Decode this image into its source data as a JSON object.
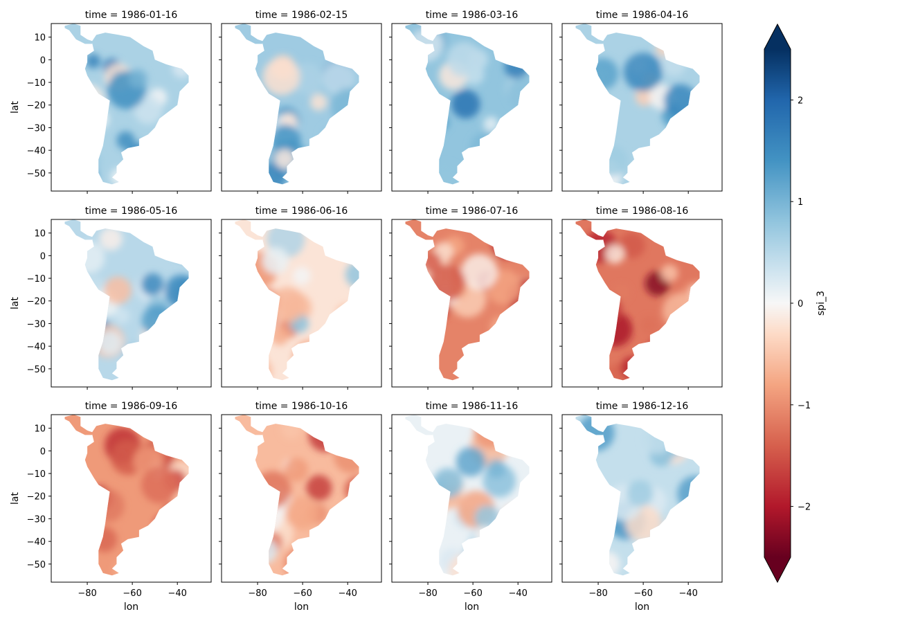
{
  "chart_data": {
    "type": "heatmap",
    "layout": {
      "rows": 3,
      "cols": 4
    },
    "variable": "spi_3",
    "xlabel": "lon",
    "ylabel": "lat",
    "xlim": [
      -96,
      -25
    ],
    "ylim": [
      -58,
      16
    ],
    "xticks": [
      -80,
      -60,
      -40
    ],
    "xtick_labels": [
      "−80",
      "−60",
      "−40"
    ],
    "yticks": [
      10,
      0,
      -10,
      -20,
      -30,
      -40,
      -50
    ],
    "ytick_labels": [
      "10",
      "0",
      "−10",
      "−20",
      "−30",
      "−40",
      "−50"
    ],
    "colorbar": {
      "label": "spi_3",
      "colormap": "RdBu",
      "vmin": -2.5,
      "vmax": 2.5,
      "extend": "both",
      "ticks": [
        2,
        1,
        0,
        -1,
        -2
      ],
      "tick_labels": [
        "2",
        "1",
        "0",
        "−1",
        "−2"
      ]
    },
    "colors": {
      "strong_dry": "#67001f",
      "dry": "#d6604d",
      "mild_dry": "#f4a582",
      "neutral": "#f7f7f7",
      "mild_wet": "#92c5de",
      "wet": "#4393c3",
      "strong_wet": "#053061"
    },
    "panels": [
      {
        "title": "time = 1986-01-16",
        "mean_spi": 0.6
      },
      {
        "title": "time = 1986-02-15",
        "mean_spi": 0.7
      },
      {
        "title": "time = 1986-03-16",
        "mean_spi": 0.8
      },
      {
        "title": "time = 1986-04-16",
        "mean_spi": 0.6
      },
      {
        "title": "time = 1986-05-16",
        "mean_spi": 0.5
      },
      {
        "title": "time = 1986-06-16",
        "mean_spi": -0.2
      },
      {
        "title": "time = 1986-07-16",
        "mean_spi": -1.1
      },
      {
        "title": "time = 1986-08-16",
        "mean_spi": -1.2
      },
      {
        "title": "time = 1986-09-16",
        "mean_spi": -0.9
      },
      {
        "title": "time = 1986-10-16",
        "mean_spi": -0.6
      },
      {
        "title": "time = 1986-11-16",
        "mean_spi": 0.1
      },
      {
        "title": "time = 1986-12-16",
        "mean_spi": 0.4
      }
    ]
  }
}
